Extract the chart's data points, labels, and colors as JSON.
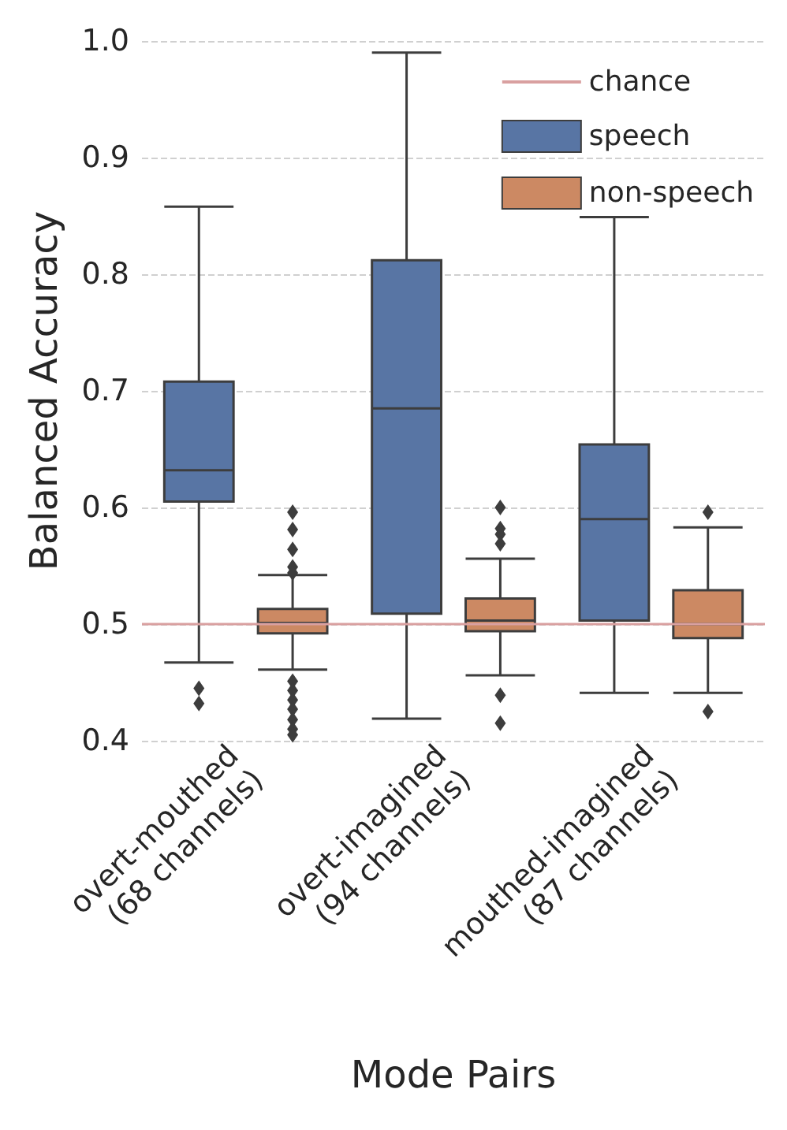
{
  "chart_data": {
    "type": "box",
    "xlabel": "Mode Pairs",
    "ylabel": "Balanced Accuracy",
    "categories": [
      "overt-mouthed\n(68 channels)",
      "overt-imagined\n(94 channels)",
      "mouthed-imagined\n(87 channels)"
    ],
    "series": [
      {
        "name": "speech",
        "color": "#5875a4",
        "boxes": [
          {
            "low": 0.467,
            "q1": 0.605,
            "median": 0.632,
            "q3": 0.708,
            "high": 0.858,
            "outliers": [
              0.445,
              0.432
            ]
          },
          {
            "low": 0.419,
            "q1": 0.509,
            "median": 0.685,
            "q3": 0.812,
            "high": 0.99
          },
          {
            "low": 0.441,
            "q1": 0.503,
            "median": 0.59,
            "q3": 0.654,
            "high": 0.849
          }
        ]
      },
      {
        "name": "non-speech",
        "color": "#cc8963",
        "boxes": [
          {
            "low": 0.461,
            "q1": 0.492,
            "median": 0.501,
            "q3": 0.513,
            "high": 0.542,
            "outliers": [
              0.596,
              0.581,
              0.564,
              0.549,
              0.544,
              0.451,
              0.443,
              0.435,
              0.427,
              0.418,
              0.41,
              0.405
            ]
          },
          {
            "low": 0.456,
            "q1": 0.494,
            "median": 0.503,
            "q3": 0.522,
            "high": 0.556,
            "outliers": [
              0.6,
              0.582,
              0.577,
              0.569,
              0.439,
              0.415
            ]
          },
          {
            "low": 0.441,
            "q1": 0.488,
            "median": 0.5,
            "q3": 0.529,
            "high": 0.583,
            "outliers": [
              0.596,
              0.425
            ]
          }
        ]
      }
    ],
    "ylim": [
      0.4,
      1.0
    ],
    "yticks": [
      0.4,
      0.5,
      0.6,
      0.7,
      0.8,
      0.9,
      {
        "value": 1.0,
        "label": "1.0"
      }
    ],
    "ref_lines": [
      {
        "axis": "y",
        "value": 0.5,
        "label": "chance",
        "color": "#d9a0a0"
      }
    ],
    "grid": "y",
    "legend": "top right",
    "marker": "diamond"
  }
}
